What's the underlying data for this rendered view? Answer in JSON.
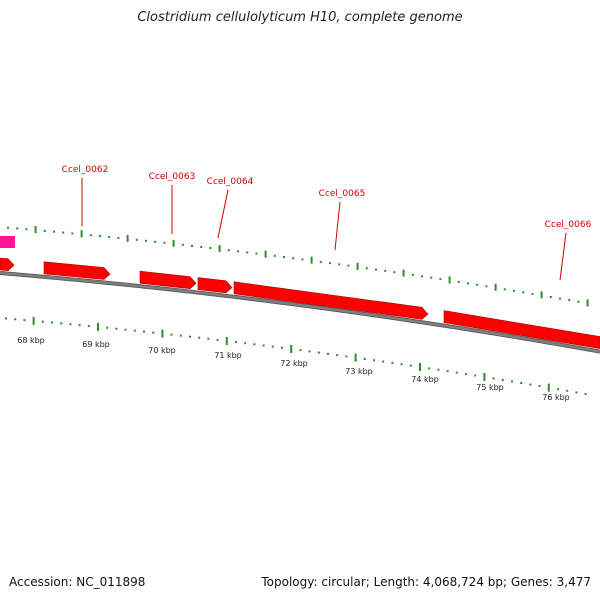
{
  "title": "Clostridium cellulolyticum H10, complete genome",
  "footer": {
    "accession": "Accession: NC_011898",
    "summary": "Topology: circular; Length: 4,068,724 bp; Genes: 3,477"
  },
  "colors": {
    "gene": "#ff0000",
    "gene_other": "#ff1493",
    "backbone": "#7f7f7f",
    "ticks": "#2e8b2e",
    "label": "#d00000"
  },
  "genes": [
    {
      "label": "Ccel_0062"
    },
    {
      "label": "Ccel_0063"
    },
    {
      "label": "Ccel_0064"
    },
    {
      "label": "Ccel_0065"
    },
    {
      "label": "Ccel_0066"
    }
  ],
  "scale_labels": [
    "68 kbp",
    "69 kbp",
    "70 kbp",
    "71 kbp",
    "72 kbp",
    "73 kbp",
    "74 kbp",
    "75 kbp",
    "76 kbp"
  ]
}
